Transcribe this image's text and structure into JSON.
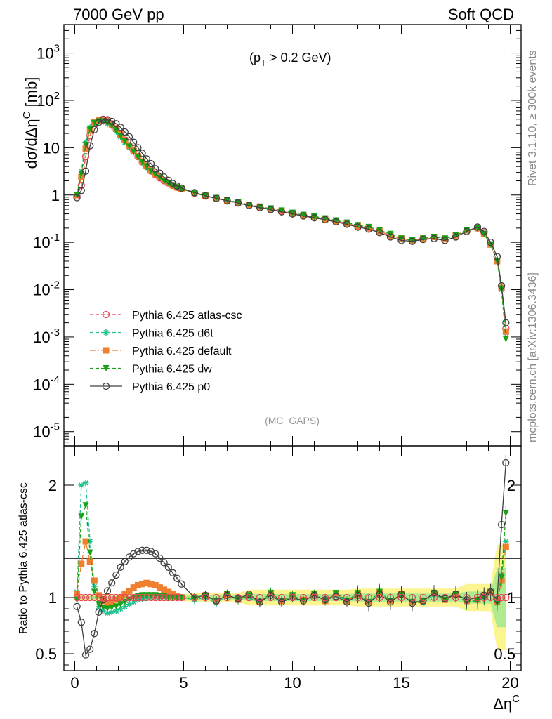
{
  "header": {
    "left": "7000 GeV pp",
    "right": "Soft QCD"
  },
  "side_labels": {
    "top": "Rivet 3.1.10, ≥ 300k events",
    "bottom": "mcplots.cern.ch [arXiv:1306.3436]"
  },
  "annotation": {
    "cut": "(p_T > 0.2 GeV)",
    "analysis": "(MC_GAPS)"
  },
  "chart_data": [
    {
      "type": "line",
      "ylabel": "dσ/dΔη^C [mb]",
      "yscale": "log",
      "ylim": [
        5e-06,
        4000
      ],
      "xlim": [
        -0.5,
        20.5
      ],
      "legend_position": "middle-left",
      "y_tick_labels": [
        "10^-5",
        "10^-4",
        "10^-3",
        "10^-2",
        "10^-1",
        "1",
        "10",
        "10^2",
        "10^3"
      ],
      "x": [
        0.1,
        0.3,
        0.5,
        0.7,
        0.9,
        1.1,
        1.3,
        1.5,
        1.7,
        1.9,
        2.1,
        2.3,
        2.5,
        2.7,
        2.9,
        3.1,
        3.3,
        3.5,
        3.7,
        3.9,
        4.1,
        4.3,
        4.5,
        4.7,
        4.9,
        5.5,
        6,
        6.5,
        7,
        7.5,
        8,
        8.5,
        9,
        9.5,
        10,
        10.5,
        11,
        11.5,
        12,
        12.5,
        13,
        13.5,
        14,
        14.5,
        15,
        15.5,
        16,
        16.5,
        17,
        17.5,
        18,
        18.5,
        18.8,
        19.1,
        19.4,
        19.6,
        19.8
      ],
      "series": [
        {
          "name": "Pythia 6.425 atlas-csc",
          "color": "#e8455a",
          "marker": "circle-open",
          "dash": "5,3",
          "values": [
            0.95,
            1.6,
            6.5,
            18,
            30,
            38,
            40,
            37,
            32,
            25,
            19,
            14.5,
            11,
            8.5,
            6.5,
            5.0,
            4.0,
            3.2,
            2.7,
            2.3,
            2.0,
            1.8,
            1.6,
            1.45,
            1.35,
            1.1,
            0.95,
            0.85,
            0.75,
            0.68,
            0.6,
            0.55,
            0.5,
            0.45,
            0.4,
            0.37,
            0.34,
            0.31,
            0.28,
            0.25,
            0.22,
            0.2,
            0.17,
            0.14,
            0.12,
            0.11,
            0.12,
            0.12,
            0.11,
            0.13,
            0.17,
            0.2,
            0.16,
            0.1,
            0.05,
            0.012,
            0.0015
          ]
        },
        {
          "name": "Pythia 6.425 d6t",
          "color": "#1fc18f",
          "marker": "star",
          "dash": "5,3",
          "values": [
            1.0,
            3.2,
            13,
            27,
            33,
            35,
            35,
            32,
            28,
            22,
            17,
            13,
            10,
            8,
            6.2,
            4.9,
            3.9,
            3.2,
            2.7,
            2.3,
            2.0,
            1.8,
            1.6,
            1.45,
            1.35,
            1.1,
            0.95,
            0.85,
            0.76,
            0.69,
            0.62,
            0.56,
            0.51,
            0.46,
            0.41,
            0.38,
            0.35,
            0.32,
            0.29,
            0.26,
            0.23,
            0.21,
            0.18,
            0.15,
            0.12,
            0.11,
            0.12,
            0.13,
            0.12,
            0.14,
            0.18,
            0.2,
            0.15,
            0.09,
            0.04,
            0.01,
            0.0012
          ]
        },
        {
          "name": "Pythia 6.425 default",
          "color": "#f07f2e",
          "marker": "square",
          "dash": "8,3,2,3",
          "values": [
            1.0,
            2.4,
            9.5,
            23,
            34,
            38,
            39,
            36,
            31,
            25,
            19,
            14.5,
            11,
            8.5,
            6.6,
            5.1,
            4.1,
            3.3,
            2.8,
            2.4,
            2.05,
            1.8,
            1.6,
            1.45,
            1.35,
            1.1,
            0.97,
            0.86,
            0.77,
            0.7,
            0.62,
            0.57,
            0.51,
            0.46,
            0.41,
            0.37,
            0.34,
            0.31,
            0.28,
            0.25,
            0.22,
            0.2,
            0.17,
            0.14,
            0.12,
            0.11,
            0.12,
            0.13,
            0.12,
            0.14,
            0.18,
            0.2,
            0.15,
            0.09,
            0.04,
            0.011,
            0.0013
          ]
        },
        {
          "name": "Pythia 6.425 dw",
          "color": "#15a315",
          "marker": "triangle-down",
          "dash": "5,3",
          "values": [
            1.0,
            2.8,
            11.5,
            25,
            33,
            36,
            36,
            33,
            29,
            23,
            17.5,
            13.5,
            10.5,
            8.2,
            6.3,
            5.0,
            4.0,
            3.2,
            2.7,
            2.3,
            2.0,
            1.8,
            1.6,
            1.45,
            1.35,
            1.1,
            0.96,
            0.86,
            0.77,
            0.7,
            0.62,
            0.56,
            0.52,
            0.47,
            0.42,
            0.38,
            0.35,
            0.32,
            0.29,
            0.26,
            0.23,
            0.21,
            0.18,
            0.15,
            0.12,
            0.11,
            0.12,
            0.13,
            0.12,
            0.14,
            0.18,
            0.2,
            0.15,
            0.09,
            0.04,
            0.01,
            0.0009
          ]
        },
        {
          "name": "Pythia 6.425 p0",
          "color": "#404040",
          "marker": "circle-open",
          "dash": "",
          "values": [
            0.88,
            1.25,
            3.2,
            11,
            24,
            34,
            39,
            39,
            36,
            32,
            27,
            21.5,
            17,
            13,
            10,
            7.6,
            5.8,
            4.6,
            3.6,
            2.9,
            2.4,
            2.05,
            1.75,
            1.55,
            1.4,
            1.12,
            0.97,
            0.85,
            0.76,
            0.68,
            0.6,
            0.54,
            0.49,
            0.44,
            0.4,
            0.36,
            0.33,
            0.3,
            0.27,
            0.24,
            0.21,
            0.19,
            0.16,
            0.13,
            0.11,
            0.105,
            0.115,
            0.12,
            0.11,
            0.13,
            0.17,
            0.21,
            0.17,
            0.1,
            0.05,
            0.012,
            0.002
          ]
        }
      ]
    },
    {
      "type": "line",
      "ylabel": "Ratio to Pythia 6.425 atlas-csc",
      "xlabel": "Δη^C",
      "ylim": [
        0.35,
        2.35
      ],
      "xlim": [
        -0.5,
        20.5
      ],
      "x_tick_labels": [
        "0",
        "5",
        "10",
        "15",
        "20"
      ],
      "y_tick_labels": [
        "0.5",
        "1",
        "2"
      ],
      "x": [
        0.1,
        0.3,
        0.5,
        0.7,
        0.9,
        1.1,
        1.3,
        1.5,
        1.7,
        1.9,
        2.1,
        2.3,
        2.5,
        2.7,
        2.9,
        3.1,
        3.3,
        3.5,
        3.7,
        3.9,
        4.1,
        4.3,
        4.5,
        4.7,
        4.9,
        5.5,
        6,
        6.5,
        7,
        7.5,
        8,
        8.5,
        9,
        9.5,
        10,
        10.5,
        11,
        11.5,
        12,
        12.5,
        13,
        13.5,
        14,
        14.5,
        15,
        15.5,
        16,
        16.5,
        17,
        17.5,
        18,
        18.5,
        18.8,
        19.1,
        19.4,
        19.6,
        19.8
      ],
      "series": [
        {
          "name": "Pythia 6.425 d6t",
          "color": "#1fc18f",
          "values": [
            1.05,
            2.0,
            2.02,
            1.5,
            1.1,
            0.92,
            0.88,
            0.86,
            0.87,
            0.88,
            0.9,
            0.92,
            0.94,
            0.96,
            0.98,
            0.99,
            1.0,
            1.0,
            1.0,
            1.0,
            1.0,
            1.0,
            1.0,
            1.0,
            1.0,
            0.98,
            1.0,
            0.95,
            1.02,
            0.98,
            1.0,
            0.95,
            1.05,
            0.96,
            1.0,
            0.97,
            1.02,
            0.97,
            1.03,
            0.96,
            1.02,
            0.95,
            1.05,
            0.97,
            1.02,
            0.96,
            0.95,
            1.03,
            0.98,
            1.02,
            0.96,
            0.98,
            1.0,
            1.05,
            0.95,
            1.2,
            1.5
          ]
        },
        {
          "name": "Pythia 6.425 default",
          "color": "#f07f2e",
          "values": [
            1.03,
            1.3,
            1.5,
            1.32,
            1.15,
            1.02,
            0.97,
            0.95,
            0.96,
            0.98,
            1.0,
            1.03,
            1.06,
            1.09,
            1.11,
            1.12,
            1.13,
            1.12,
            1.11,
            1.09,
            1.07,
            1.05,
            1.03,
            1.01,
            1.0,
            1.0,
            1.02,
            0.97,
            1.03,
            0.98,
            1.02,
            0.96,
            1.04,
            0.97,
            1.01,
            0.98,
            1.02,
            0.97,
            1.04,
            0.97,
            1.03,
            0.96,
            1.04,
            0.97,
            1.03,
            0.96,
            0.97,
            1.04,
            0.98,
            1.02,
            0.97,
            0.98,
            1.02,
            1.05,
            0.96,
            1.15,
            1.45
          ]
        },
        {
          "name": "Pythia 6.425 dw",
          "color": "#15a315",
          "values": [
            0.98,
            1.72,
            1.82,
            1.4,
            1.05,
            0.94,
            0.91,
            0.9,
            0.91,
            0.92,
            0.94,
            0.96,
            0.98,
            1.0,
            1.01,
            1.02,
            1.02,
            1.02,
            1.02,
            1.01,
            1.01,
            1.0,
            1.0,
            1.0,
            1.0,
            0.99,
            1.01,
            0.97,
            1.03,
            0.98,
            1.02,
            0.96,
            1.04,
            0.97,
            1.02,
            0.97,
            1.03,
            0.97,
            1.04,
            0.97,
            1.04,
            0.96,
            1.05,
            0.97,
            1.02,
            0.96,
            0.97,
            1.04,
            0.98,
            1.03,
            0.96,
            0.97,
            1.0,
            1.05,
            0.95,
            1.18,
            1.75
          ]
        },
        {
          "name": "Pythia 6.425 p0",
          "color": "#404040",
          "values": [
            0.92,
            0.78,
            0.49,
            0.54,
            0.68,
            0.87,
            0.98,
            1.06,
            1.13,
            1.2,
            1.27,
            1.32,
            1.36,
            1.39,
            1.41,
            1.42,
            1.42,
            1.41,
            1.39,
            1.35,
            1.31,
            1.27,
            1.22,
            1.17,
            1.12,
            1.0,
            1.02,
            0.97,
            1.02,
            0.99,
            1.03,
            0.96,
            1.02,
            0.96,
            1.0,
            0.97,
            1.02,
            0.98,
            1.01,
            0.96,
            1.02,
            0.95,
            1.03,
            0.96,
            1.03,
            0.95,
            0.97,
            1.04,
            0.99,
            1.03,
            0.98,
            1.0,
            1.02,
            1.05,
            0.98,
            1.65,
            2.2
          ]
        }
      ]
    }
  ]
}
